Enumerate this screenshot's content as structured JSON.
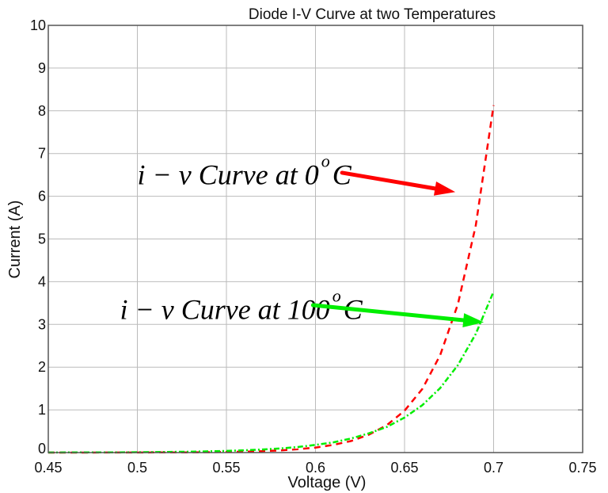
{
  "chart_data": {
    "type": "line",
    "title": "Diode I-V Curve at two Temperatures",
    "xlabel": "Voltage (V)",
    "ylabel": "Current (A)",
    "xlim": [
      0.45,
      0.75
    ],
    "ylim": [
      0,
      10
    ],
    "xticks": [
      "0.45",
      "0.5",
      "0.55",
      "0.6",
      "0.65",
      "0.7",
      "0.75"
    ],
    "yticks": [
      "0",
      "1",
      "2",
      "3",
      "4",
      "5",
      "6",
      "7",
      "8",
      "9",
      "10"
    ],
    "grid": true,
    "x": [
      0.45,
      0.46,
      0.47,
      0.48,
      0.49,
      0.5,
      0.51,
      0.52,
      0.53,
      0.54,
      0.55,
      0.56,
      0.57,
      0.58,
      0.59,
      0.6,
      0.61,
      0.62,
      0.63,
      0.64,
      0.65,
      0.66,
      0.67,
      0.68,
      0.69,
      0.7
    ],
    "series": [
      {
        "color": "#ff0000",
        "style": "dashed",
        "values": [
          0.0,
          0.0,
          0.0,
          0.001,
          0.001,
          0.002,
          0.003,
          0.004,
          0.006,
          0.009,
          0.014,
          0.021,
          0.033,
          0.05,
          0.077,
          0.117,
          0.18,
          0.27,
          0.42,
          0.64,
          0.98,
          1.49,
          2.28,
          3.48,
          5.32,
          8.13
        ]
      },
      {
        "color": "#00ee00",
        "style": "dash-dot",
        "values": [
          0.002,
          0.003,
          0.003,
          0.005,
          0.006,
          0.0085,
          0.011,
          0.016,
          0.021,
          0.029,
          0.039,
          0.053,
          0.072,
          0.097,
          0.13,
          0.18,
          0.24,
          0.33,
          0.45,
          0.6,
          0.82,
          1.11,
          1.51,
          2.05,
          2.78,
          3.77
        ]
      }
    ],
    "annotations": [
      {
        "pre": "i − v  Curve  at  0",
        "sup": "o",
        "post": "C",
        "color": "#ff0000",
        "text_at": [
          0.5,
          6.5
        ],
        "arrow_from": [
          0.6905,
          6.55
        ],
        "arrow_to": [
          0.6785,
          6.1
        ]
      },
      {
        "pre": "i − v  Curve  at  100",
        "sup": "o",
        "post": "C",
        "color": "#00ee00",
        "text_at": [
          0.5,
          3.35
        ],
        "arrow_from": [
          0.6875,
          3.45
        ],
        "arrow_to": [
          0.6945,
          3.05
        ]
      }
    ]
  }
}
